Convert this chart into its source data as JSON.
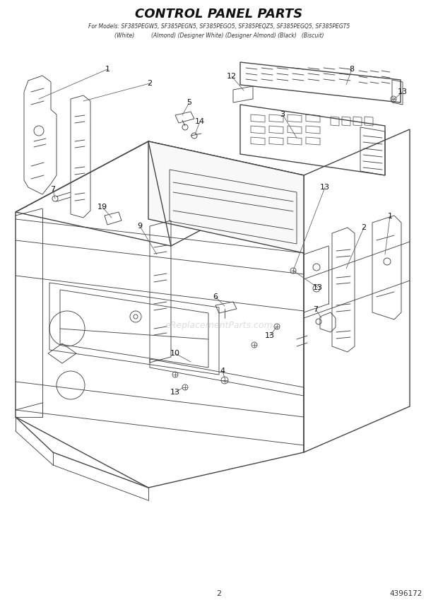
{
  "title": "CONTROL PANEL PARTS",
  "subtitle_line1": "For Models: SF385PEGW5, SF385PEGN5, SF385PEGO5, SF385PEQZ5, SF385PEGQ5, SF385PEGT5",
  "subtitle_line2": "(White)          (Almond) (Designer White) (Designer Almond) (Black)   (Biscuit)",
  "page_number": "2",
  "part_number": "4396172",
  "watermark": "eReplacementParts.com",
  "bg_color": "#ffffff",
  "line_color": "#444444",
  "text_color": "#222222",
  "title_color": "#222222"
}
